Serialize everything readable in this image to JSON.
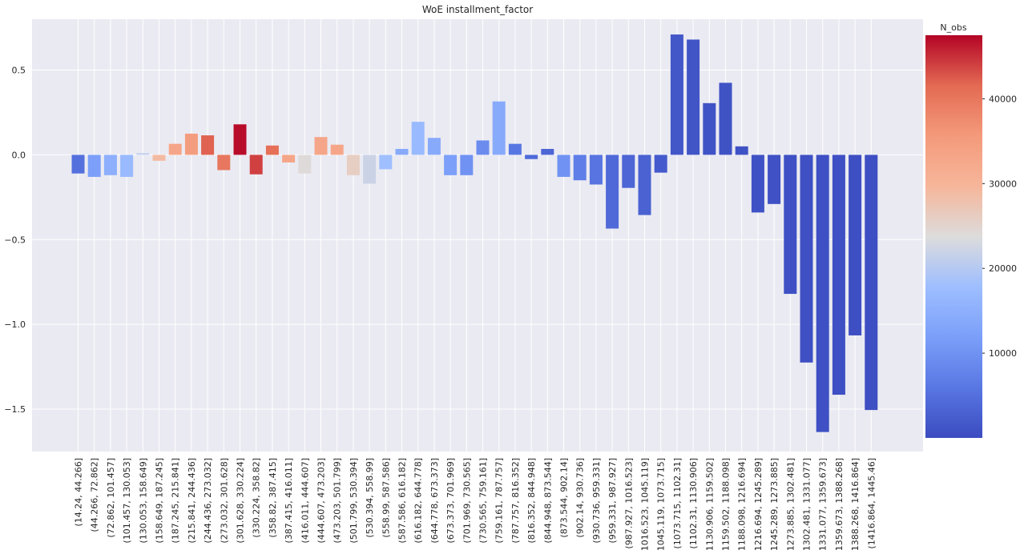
{
  "chart_data": {
    "type": "bar",
    "title": "WoE installment_factor",
    "xlabel": "",
    "ylabel": "",
    "ylim": [
      -1.75,
      0.8
    ],
    "yticks": [
      0.5,
      0.0,
      -0.5,
      -1.0,
      -1.5
    ],
    "ytick_labels": [
      "0.5",
      "0.0",
      "−0.5",
      "−1.0",
      "−1.5"
    ],
    "grid": true,
    "categories": [
      "(14.24, 44.266]",
      "(44.266, 72.862]",
      "(72.862, 101.457]",
      "(101.457, 130.053]",
      "(130.053, 158.649]",
      "(158.649, 187.245]",
      "(187.245, 215.841]",
      "(215.841, 244.436]",
      "(244.436, 273.032]",
      "(273.032, 301.628]",
      "(301.628, 330.224]",
      "(330.224, 358.82]",
      "(358.82, 387.415]",
      "(387.415, 416.011]",
      "(416.011, 444.607]",
      "(444.607, 473.203]",
      "(473.203, 501.799]",
      "(501.799, 530.394]",
      "(530.394, 558.99]",
      "(558.99, 587.586]",
      "(587.586, 616.182]",
      "(616.182, 644.778]",
      "(644.778, 673.373]",
      "(673.373, 701.969]",
      "(701.969, 730.565]",
      "(730.565, 759.161]",
      "(759.161, 787.757]",
      "(787.757, 816.352]",
      "(816.352, 844.948]",
      "(844.948, 873.544]",
      "(873.544, 902.14]",
      "(902.14, 930.736]",
      "(930.736, 959.331]",
      "(959.331, 987.927]",
      "(987.927, 1016.523]",
      "(1016.523, 1045.119]",
      "(1045.119, 1073.715]",
      "(1073.715, 1102.31]",
      "(1102.31, 1130.906]",
      "(1130.906, 1159.502]",
      "(1159.502, 1188.098]",
      "(1188.098, 1216.694]",
      "(1216.694, 1245.289]",
      "(1245.289, 1273.885]",
      "(1273.885, 1302.481]",
      "(1302.481, 1331.077]",
      "(1331.077, 1359.673]",
      "(1359.673, 1388.268]",
      "(1388.268, 1416.864]",
      "(1416.864, 1445.46]"
    ],
    "values": [
      -0.11,
      -0.13,
      -0.12,
      -0.13,
      0.01,
      -0.035,
      0.065,
      0.125,
      0.115,
      -0.09,
      0.18,
      -0.115,
      0.055,
      -0.045,
      -0.11,
      0.105,
      0.06,
      -0.12,
      -0.17,
      -0.085,
      0.035,
      0.195,
      0.1,
      -0.12,
      -0.12,
      0.085,
      0.315,
      0.065,
      -0.025,
      0.035,
      -0.13,
      -0.15,
      -0.175,
      -0.435,
      -0.195,
      -0.355,
      -0.105,
      0.71,
      0.68,
      0.305,
      0.425,
      0.05,
      -0.34,
      -0.29,
      -0.82,
      -1.225,
      -1.635,
      -1.415,
      -1.065,
      -1.505
    ],
    "n_obs": [
      5000,
      12000,
      15000,
      17000,
      21000,
      29000,
      33000,
      35000,
      42000,
      40000,
      47000,
      44000,
      41000,
      33000,
      24000,
      33000,
      33000,
      26000,
      22000,
      18000,
      14000,
      17000,
      14000,
      12000,
      10000,
      9000,
      14000,
      6000,
      4000,
      3500,
      10000,
      7000,
      5500,
      4000,
      3500,
      3000,
      2000,
      1500,
      1200,
      1000,
      900,
      800,
      800,
      700,
      600,
      500,
      500,
      500,
      400,
      400
    ],
    "colorbar": {
      "label": "N_obs",
      "min": 0,
      "max": 47500,
      "ticks": [
        10000,
        20000,
        30000,
        40000
      ],
      "tick_labels": [
        "10000",
        "20000",
        "30000",
        "40000"
      ],
      "colormap": "coolwarm"
    }
  }
}
